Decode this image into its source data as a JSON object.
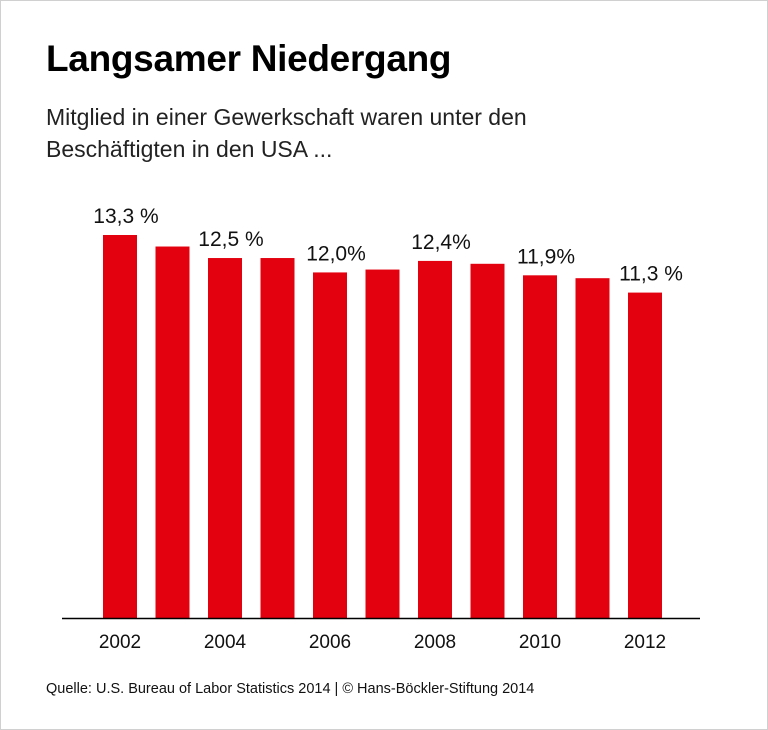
{
  "title": "Langsamer Niedergang",
  "subtitle": "Mitglied in einer Gewerkschaft waren unter den Beschäftigten in den USA ...",
  "source": "Quelle: U.S. Bureau of Labor Statistics 2014 | © Hans-Böckler-Stiftung 2014",
  "colors": {
    "bar": "#e3000f",
    "axis": "#000000"
  },
  "chart_data": {
    "type": "bar",
    "categories": [
      "2002",
      "2003",
      "2004",
      "2005",
      "2006",
      "2007",
      "2008",
      "2009",
      "2010",
      "2011",
      "2012"
    ],
    "values": [
      13.3,
      12.9,
      12.5,
      12.5,
      12.0,
      12.1,
      12.4,
      12.3,
      11.9,
      11.8,
      11.3
    ],
    "unit": "%",
    "data_labels": {
      "2002": "13,3 %",
      "2004": "12,5 %",
      "2006": "12,0%",
      "2008": "12,4%",
      "2010": "11,9%",
      "2012": "11,3 %"
    },
    "tick_labels": [
      "2002",
      "2004",
      "2006",
      "2008",
      "2010",
      "2012"
    ],
    "ylim": [
      0,
      13.3
    ],
    "grid": false,
    "legend": "none"
  }
}
